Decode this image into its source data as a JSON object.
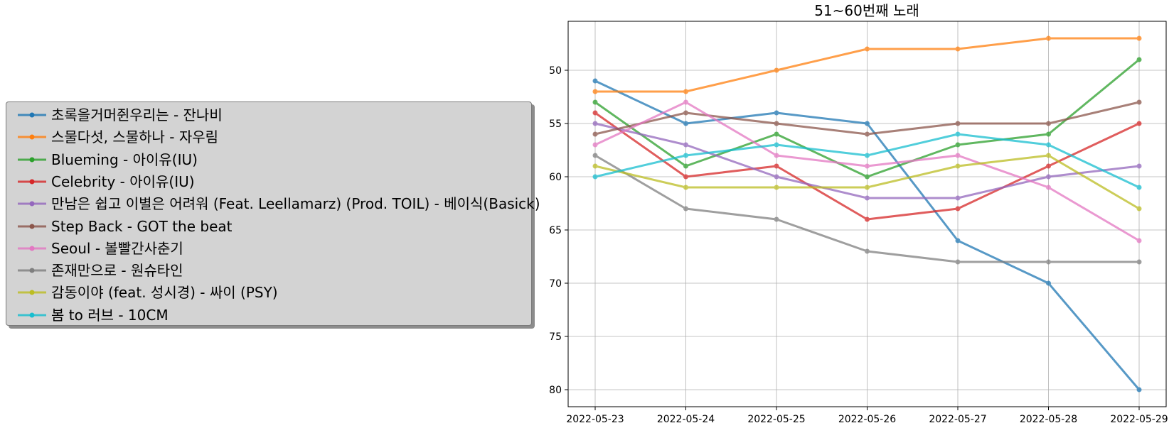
{
  "chart_data": {
    "type": "line",
    "title": "51~60번째 노래",
    "xlabel": "",
    "ylabel": "",
    "x": [
      "2022-05-23",
      "2022-05-24",
      "2022-05-25",
      "2022-05-26",
      "2022-05-27",
      "2022-05-28",
      "2022-05-29"
    ],
    "yticks": [
      50,
      55,
      60,
      65,
      70,
      75,
      80
    ],
    "ylim": [
      81.6,
      45.4
    ],
    "y_inverted": true,
    "grid": true,
    "legend_position": "left, outside plot",
    "series": [
      {
        "name": "초록을거머쥔우리는 - 잔나비",
        "color": "#1f77b4",
        "values": [
          51,
          55,
          54,
          55,
          66,
          70,
          80
        ]
      },
      {
        "name": "스물다섯, 스물하나 - 자우림",
        "color": "#ff7f0e",
        "values": [
          52,
          52,
          50,
          48,
          48,
          47,
          47
        ]
      },
      {
        "name": "Blueming - 아이유(IU)",
        "color": "#2ca02c",
        "values": [
          53,
          59,
          56,
          60,
          57,
          56,
          49
        ]
      },
      {
        "name": "Celebrity - 아이유(IU)",
        "color": "#d62728",
        "values": [
          54,
          60,
          59,
          64,
          63,
          59,
          55
        ]
      },
      {
        "name": "만남은 쉽고 이별은 어려워 (Feat. Leellamarz) (Prod. TOIL) - 베이식(Basick)",
        "color": "#9467bd",
        "values": [
          55,
          57,
          60,
          62,
          62,
          60,
          59
        ]
      },
      {
        "name": "Step Back - GOT the beat",
        "color": "#8c564b",
        "values": [
          56,
          54,
          55,
          56,
          55,
          55,
          53
        ]
      },
      {
        "name": "Seoul - 볼빨간사춘기",
        "color": "#e377c2",
        "values": [
          57,
          53,
          58,
          59,
          58,
          61,
          66
        ]
      },
      {
        "name": "존재만으로 - 원슈타인",
        "color": "#7f7f7f",
        "values": [
          58,
          63,
          64,
          67,
          68,
          68,
          68
        ]
      },
      {
        "name": "감동이야 (feat. 성시경) - 싸이 (PSY)",
        "color": "#bcbd22",
        "values": [
          59,
          61,
          61,
          61,
          59,
          58,
          63
        ]
      },
      {
        "name": "봄 to 러브 - 10CM",
        "color": "#17becf",
        "values": [
          60,
          58,
          57,
          58,
          56,
          57,
          61
        ]
      }
    ]
  }
}
